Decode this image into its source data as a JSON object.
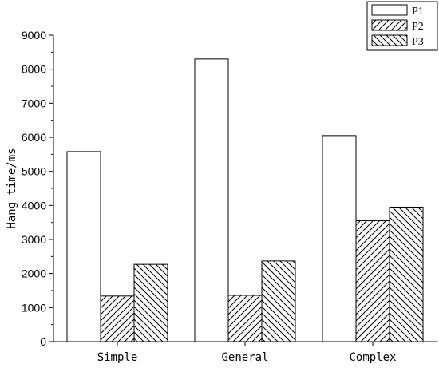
{
  "chart_data": {
    "type": "bar",
    "categories": [
      "Simple",
      "General",
      "Complex"
    ],
    "series": [
      {
        "name": "P1",
        "values": [
          5580,
          8300,
          6050
        ],
        "pattern": "none"
      },
      {
        "name": "P2",
        "values": [
          1340,
          1360,
          3550
        ],
        "pattern": "hatch-forward"
      },
      {
        "name": "P3",
        "values": [
          2270,
          2370,
          3950
        ],
        "pattern": "hatch-back"
      }
    ],
    "title": "",
    "xlabel": "",
    "ylabel": "Hang time/ms",
    "ylim": [
      0,
      9000
    ],
    "yticks": [
      0,
      1000,
      2000,
      3000,
      4000,
      5000,
      6000,
      7000,
      8000,
      9000
    ],
    "grid": false,
    "legend_position": "top-right",
    "colors": {
      "bar_fill": "#ffffff",
      "stroke": "#000000"
    }
  }
}
